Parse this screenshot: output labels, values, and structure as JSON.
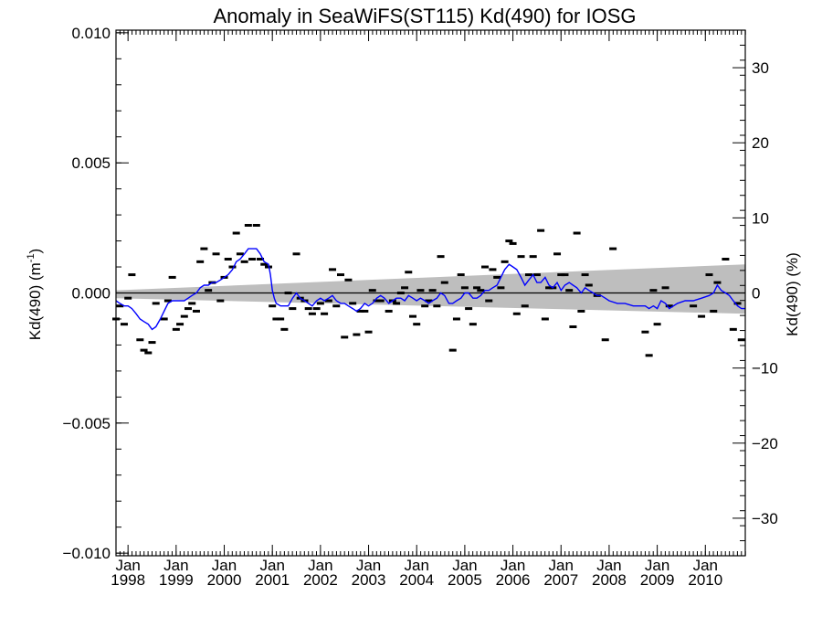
{
  "chart_data": {
    "type": "scatter",
    "title": "Anomaly in SeaWiFS(ST115) Kd(490) for IOSG",
    "ylabel_left": "Kd(490) (m",
    "ylabel_left_sup": "-1",
    "ylabel_left_close": ")",
    "ylabel_right": "Kd(490) (%)",
    "xlim": [
      1997.75,
      2010.83
    ],
    "ylim": [
      -0.0101,
      0.0101
    ],
    "ylim_right": [
      -35,
      35
    ],
    "y_ticks": [
      {
        "value": -0.01,
        "label": "−0.010"
      },
      {
        "value": -0.005,
        "label": "−0.005"
      },
      {
        "value": 0.0,
        "label": "0.000"
      },
      {
        "value": 0.005,
        "label": "0.005"
      },
      {
        "value": 0.01,
        "label": "0.010"
      }
    ],
    "y_right_ticks": [
      {
        "value": -30,
        "label": "−30"
      },
      {
        "value": -20,
        "label": "−20"
      },
      {
        "value": -10,
        "label": "−10"
      },
      {
        "value": 0,
        "label": "0"
      },
      {
        "value": 10,
        "label": "10"
      },
      {
        "value": 20,
        "label": "20"
      },
      {
        "value": 30,
        "label": "30"
      }
    ],
    "x_ticks": [
      {
        "value": 1998,
        "month": "Jan",
        "year": "1998"
      },
      {
        "value": 1999,
        "month": "Jan",
        "year": "1999"
      },
      {
        "value": 2000,
        "month": "Jan",
        "year": "2000"
      },
      {
        "value": 2001,
        "month": "Jan",
        "year": "2001"
      },
      {
        "value": 2002,
        "month": "Jan",
        "year": "2002"
      },
      {
        "value": 2003,
        "month": "Jan",
        "year": "2003"
      },
      {
        "value": 2004,
        "month": "Jan",
        "year": "2004"
      },
      {
        "value": 2005,
        "month": "Jan",
        "year": "2005"
      },
      {
        "value": 2006,
        "month": "Jan",
        "year": "2006"
      },
      {
        "value": 2007,
        "month": "Jan",
        "year": "2007"
      },
      {
        "value": 2008,
        "month": "Jan",
        "year": "2008"
      },
      {
        "value": 2009,
        "month": "Jan",
        "year": "2009"
      },
      {
        "value": 2010,
        "month": "Jan",
        "year": "2010"
      }
    ],
    "monthly_anomaly": [
      [
        1997.75,
        -0.001
      ],
      [
        1997.83,
        -0.0005
      ],
      [
        1997.92,
        -0.0012
      ],
      [
        1998.0,
        -0.0002
      ],
      [
        1998.08,
        0.0007
      ],
      [
        1998.25,
        -0.0018
      ],
      [
        1998.33,
        -0.0022
      ],
      [
        1998.42,
        -0.0023
      ],
      [
        1998.5,
        -0.0019
      ],
      [
        1998.58,
        -0.0004
      ],
      [
        1998.75,
        -0.001
      ],
      [
        1998.83,
        -0.0003
      ],
      [
        1998.92,
        0.0006
      ],
      [
        1999.0,
        -0.0014
      ],
      [
        1999.08,
        -0.0012
      ],
      [
        1999.17,
        -0.0009
      ],
      [
        1999.25,
        -0.0006
      ],
      [
        1999.33,
        -0.0004
      ],
      [
        1999.42,
        -0.0007
      ],
      [
        1999.5,
        0.0012
      ],
      [
        1999.58,
        0.0017
      ],
      [
        1999.67,
        0.0001
      ],
      [
        1999.75,
        0.0004
      ],
      [
        1999.83,
        0.0015
      ],
      [
        1999.92,
        -0.0003
      ],
      [
        2000.0,
        0.0006
      ],
      [
        2000.08,
        0.0013
      ],
      [
        2000.17,
        0.001
      ],
      [
        2000.25,
        0.0023
      ],
      [
        2000.33,
        0.0015
      ],
      [
        2000.42,
        0.0012
      ],
      [
        2000.5,
        0.0026
      ],
      [
        2000.58,
        0.0013
      ],
      [
        2000.67,
        0.0026
      ],
      [
        2000.75,
        0.0013
      ],
      [
        2000.83,
        0.0011
      ],
      [
        2000.92,
        0.001
      ],
      [
        2001.0,
        -0.0005
      ],
      [
        2001.08,
        -0.001
      ],
      [
        2001.17,
        -0.001
      ],
      [
        2001.25,
        -0.0014
      ],
      [
        2001.33,
        0.0
      ],
      [
        2001.42,
        -0.0006
      ],
      [
        2001.5,
        0.0015
      ],
      [
        2001.58,
        -0.0002
      ],
      [
        2001.67,
        -0.0003
      ],
      [
        2001.75,
        -0.0006
      ],
      [
        2001.83,
        -0.0008
      ],
      [
        2001.92,
        -0.0006
      ],
      [
        2002.0,
        -0.0004
      ],
      [
        2002.08,
        -0.0008
      ],
      [
        2002.17,
        -0.0003
      ],
      [
        2002.25,
        0.0009
      ],
      [
        2002.33,
        -0.0005
      ],
      [
        2002.42,
        0.0007
      ],
      [
        2002.5,
        -0.0017
      ],
      [
        2002.58,
        0.0005
      ],
      [
        2002.67,
        -0.0004
      ],
      [
        2002.75,
        -0.0016
      ],
      [
        2002.83,
        -0.0007
      ],
      [
        2002.92,
        -0.0007
      ],
      [
        2003.0,
        -0.0015
      ],
      [
        2003.08,
        0.0001
      ],
      [
        2003.17,
        -0.0003
      ],
      [
        2003.25,
        -0.0003
      ],
      [
        2003.42,
        -0.0007
      ],
      [
        2003.5,
        -0.0003
      ],
      [
        2003.58,
        -0.0004
      ],
      [
        2003.67,
        0.0
      ],
      [
        2003.75,
        0.0002
      ],
      [
        2003.83,
        0.0008
      ],
      [
        2003.92,
        -0.0009
      ],
      [
        2004.0,
        -0.0012
      ],
      [
        2004.08,
        0.0001
      ],
      [
        2004.17,
        -0.0005
      ],
      [
        2004.25,
        -0.0003
      ],
      [
        2004.33,
        0.0001
      ],
      [
        2004.42,
        -0.0005
      ],
      [
        2004.5,
        0.0014
      ],
      [
        2004.58,
        0.0004
      ],
      [
        2004.75,
        -0.0022
      ],
      [
        2004.83,
        -0.001
      ],
      [
        2004.92,
        0.0007
      ],
      [
        2005.0,
        0.0002
      ],
      [
        2005.08,
        -0.0006
      ],
      [
        2005.17,
        -0.0012
      ],
      [
        2005.25,
        0.0002
      ],
      [
        2005.33,
        0.0001
      ],
      [
        2005.42,
        0.001
      ],
      [
        2005.5,
        -0.0003
      ],
      [
        2005.58,
        0.0009
      ],
      [
        2005.67,
        0.0006
      ],
      [
        2005.75,
        0.0002
      ],
      [
        2005.83,
        0.0012
      ],
      [
        2005.92,
        0.002
      ],
      [
        2006.0,
        0.0019
      ],
      [
        2006.08,
        -0.0008
      ],
      [
        2006.17,
        0.0014
      ],
      [
        2006.25,
        -0.0005
      ],
      [
        2006.33,
        0.0007
      ],
      [
        2006.42,
        0.0014
      ],
      [
        2006.5,
        0.0007
      ],
      [
        2006.58,
        0.0024
      ],
      [
        2006.67,
        -0.001
      ],
      [
        2006.75,
        0.0002
      ],
      [
        2006.83,
        0.0002
      ],
      [
        2006.92,
        0.0015
      ],
      [
        2007.0,
        0.0007
      ],
      [
        2007.08,
        0.0007
      ],
      [
        2007.17,
        0.0001
      ],
      [
        2007.25,
        -0.0013
      ],
      [
        2007.33,
        0.0023
      ],
      [
        2007.42,
        -0.0007
      ],
      [
        2007.5,
        0.0007
      ],
      [
        2007.58,
        0.0003
      ],
      [
        2007.75,
        -0.0001
      ],
      [
        2007.92,
        -0.0018
      ],
      [
        2008.08,
        0.0017
      ],
      [
        2008.75,
        -0.0015
      ],
      [
        2008.83,
        -0.0024
      ],
      [
        2008.92,
        0.0001
      ],
      [
        2009.0,
        -0.0012
      ],
      [
        2009.17,
        0.0002
      ],
      [
        2009.25,
        -0.0005
      ],
      [
        2009.75,
        -0.0005
      ],
      [
        2009.92,
        -0.0009
      ],
      [
        2010.08,
        0.0007
      ],
      [
        2010.17,
        -0.0007
      ],
      [
        2010.25,
        0.0004
      ],
      [
        2010.42,
        0.0013
      ],
      [
        2010.58,
        -0.0014
      ],
      [
        2010.67,
        -0.0004
      ],
      [
        2010.75,
        -0.0018
      ]
    ],
    "smoothed_anomaly": [
      [
        1997.75,
        -0.0003
      ],
      [
        1997.83,
        -0.0004
      ],
      [
        1997.92,
        -0.0005
      ],
      [
        1998.0,
        -0.0005
      ],
      [
        1998.08,
        -0.0006
      ],
      [
        1998.17,
        -0.0008
      ],
      [
        1998.25,
        -0.001
      ],
      [
        1998.33,
        -0.0011
      ],
      [
        1998.42,
        -0.0012
      ],
      [
        1998.5,
        -0.0014
      ],
      [
        1998.58,
        -0.0013
      ],
      [
        1998.67,
        -0.001
      ],
      [
        1998.75,
        -0.0007
      ],
      [
        1998.83,
        -0.0004
      ],
      [
        1998.92,
        -0.0003
      ],
      [
        1999.0,
        -0.0003
      ],
      [
        1999.08,
        -0.0003
      ],
      [
        1999.17,
        -0.0003
      ],
      [
        1999.25,
        -0.0002
      ],
      [
        1999.33,
        -0.0001
      ],
      [
        1999.42,
        0.0
      ],
      [
        1999.5,
        0.0002
      ],
      [
        1999.58,
        0.0003
      ],
      [
        1999.67,
        0.0003
      ],
      [
        1999.75,
        0.0004
      ],
      [
        1999.83,
        0.0004
      ],
      [
        1999.92,
        0.0005
      ],
      [
        2000.0,
        0.0006
      ],
      [
        2000.08,
        0.0007
      ],
      [
        2000.17,
        0.0009
      ],
      [
        2000.25,
        0.0012
      ],
      [
        2000.33,
        0.0013
      ],
      [
        2000.42,
        0.0015
      ],
      [
        2000.5,
        0.0017
      ],
      [
        2000.58,
        0.0017
      ],
      [
        2000.67,
        0.0017
      ],
      [
        2000.75,
        0.0015
      ],
      [
        2000.83,
        0.0012
      ],
      [
        2000.92,
        0.0011
      ],
      [
        2000.96,
        0.0007
      ],
      [
        2001.0,
        0.0001
      ],
      [
        2001.04,
        -0.0002
      ],
      [
        2001.08,
        -0.0004
      ],
      [
        2001.17,
        -0.0005
      ],
      [
        2001.25,
        -0.0005
      ],
      [
        2001.33,
        -0.0005
      ],
      [
        2001.42,
        -0.0002
      ],
      [
        2001.5,
        0.0
      ],
      [
        2001.58,
        -0.0002
      ],
      [
        2001.67,
        -0.0003
      ],
      [
        2001.75,
        -0.0004
      ],
      [
        2001.83,
        -0.0005
      ],
      [
        2001.92,
        -0.0003
      ],
      [
        2002.0,
        -0.0002
      ],
      [
        2002.08,
        -0.0003
      ],
      [
        2002.17,
        -0.0002
      ],
      [
        2002.25,
        -0.0001
      ],
      [
        2002.33,
        -0.0003
      ],
      [
        2002.42,
        -0.0004
      ],
      [
        2002.5,
        -0.0004
      ],
      [
        2002.58,
        -0.0005
      ],
      [
        2002.67,
        -0.0006
      ],
      [
        2002.75,
        -0.0007
      ],
      [
        2002.83,
        -0.0006
      ],
      [
        2002.92,
        -0.0004
      ],
      [
        2003.0,
        -0.0005
      ],
      [
        2003.08,
        -0.0004
      ],
      [
        2003.17,
        -0.0002
      ],
      [
        2003.25,
        -0.0001
      ],
      [
        2003.33,
        -0.0002
      ],
      [
        2003.42,
        -0.0004
      ],
      [
        2003.5,
        -0.0003
      ],
      [
        2003.58,
        -0.0002
      ],
      [
        2003.67,
        -0.0002
      ],
      [
        2003.75,
        -0.0003
      ],
      [
        2003.83,
        -0.0001
      ],
      [
        2003.92,
        -0.0002
      ],
      [
        2004.0,
        -0.0003
      ],
      [
        2004.08,
        -0.0002
      ],
      [
        2004.17,
        -0.0003
      ],
      [
        2004.25,
        -0.0004
      ],
      [
        2004.33,
        -0.0003
      ],
      [
        2004.42,
        -0.0002
      ],
      [
        2004.5,
        0.0
      ],
      [
        2004.58,
        -0.0001
      ],
      [
        2004.67,
        -0.0004
      ],
      [
        2004.75,
        -0.0004
      ],
      [
        2004.83,
        -0.0003
      ],
      [
        2004.92,
        -0.0002
      ],
      [
        2005.0,
        0.0
      ],
      [
        2005.08,
        0.0
      ],
      [
        2005.17,
        -0.0002
      ],
      [
        2005.25,
        -0.0002
      ],
      [
        2005.33,
        -0.0001
      ],
      [
        2005.42,
        0.0001
      ],
      [
        2005.5,
        0.0001
      ],
      [
        2005.58,
        0.0002
      ],
      [
        2005.67,
        0.0003
      ],
      [
        2005.75,
        0.0006
      ],
      [
        2005.83,
        0.0009
      ],
      [
        2005.92,
        0.0011
      ],
      [
        2006.0,
        0.001
      ],
      [
        2006.08,
        0.0009
      ],
      [
        2006.17,
        0.0006
      ],
      [
        2006.25,
        0.0003
      ],
      [
        2006.33,
        0.0005
      ],
      [
        2006.42,
        0.0007
      ],
      [
        2006.5,
        0.0004
      ],
      [
        2006.58,
        0.0004
      ],
      [
        2006.67,
        0.0006
      ],
      [
        2006.75,
        0.0003
      ],
      [
        2006.83,
        0.0002
      ],
      [
        2006.92,
        0.0004
      ],
      [
        2007.0,
        0.0001
      ],
      [
        2007.08,
        0.0003
      ],
      [
        2007.17,
        0.0004
      ],
      [
        2007.25,
        0.0003
      ],
      [
        2007.33,
        0.0002
      ],
      [
        2007.42,
        0.0
      ],
      [
        2007.5,
        0.0002
      ],
      [
        2007.58,
        0.0001
      ],
      [
        2007.67,
        0.0
      ],
      [
        2007.75,
        -0.0001
      ],
      [
        2007.83,
        -0.0001
      ],
      [
        2007.92,
        -0.0002
      ],
      [
        2008.0,
        -0.0003
      ],
      [
        2008.17,
        -0.0004
      ],
      [
        2008.33,
        -0.0004
      ],
      [
        2008.5,
        -0.0005
      ],
      [
        2008.67,
        -0.0005
      ],
      [
        2008.75,
        -0.0005
      ],
      [
        2008.83,
        -0.0006
      ],
      [
        2008.92,
        -0.0005
      ],
      [
        2009.0,
        -0.0006
      ],
      [
        2009.08,
        -0.0003
      ],
      [
        2009.17,
        -0.0004
      ],
      [
        2009.25,
        -0.0006
      ],
      [
        2009.42,
        -0.0004
      ],
      [
        2009.58,
        -0.0003
      ],
      [
        2009.75,
        -0.0003
      ],
      [
        2009.92,
        -0.0002
      ],
      [
        2010.08,
        -0.0001
      ],
      [
        2010.17,
        0.0
      ],
      [
        2010.25,
        0.0003
      ],
      [
        2010.33,
        0.0001
      ],
      [
        2010.42,
        0.0
      ],
      [
        2010.5,
        -0.0001
      ],
      [
        2010.58,
        -0.0003
      ],
      [
        2010.67,
        -0.0005
      ],
      [
        2010.75,
        -0.0006
      ],
      [
        2010.83,
        -0.0006
      ]
    ],
    "trend_band": {
      "x": [
        1997.75,
        2010.83
      ],
      "upper": [
        0.0001,
        0.0011
      ],
      "lower": [
        -0.0002,
        -0.0008
      ]
    },
    "colors": {
      "smoothed": "#0000ff",
      "band": "#bebebe",
      "points": "#000000",
      "zero_line": "#000000"
    }
  }
}
